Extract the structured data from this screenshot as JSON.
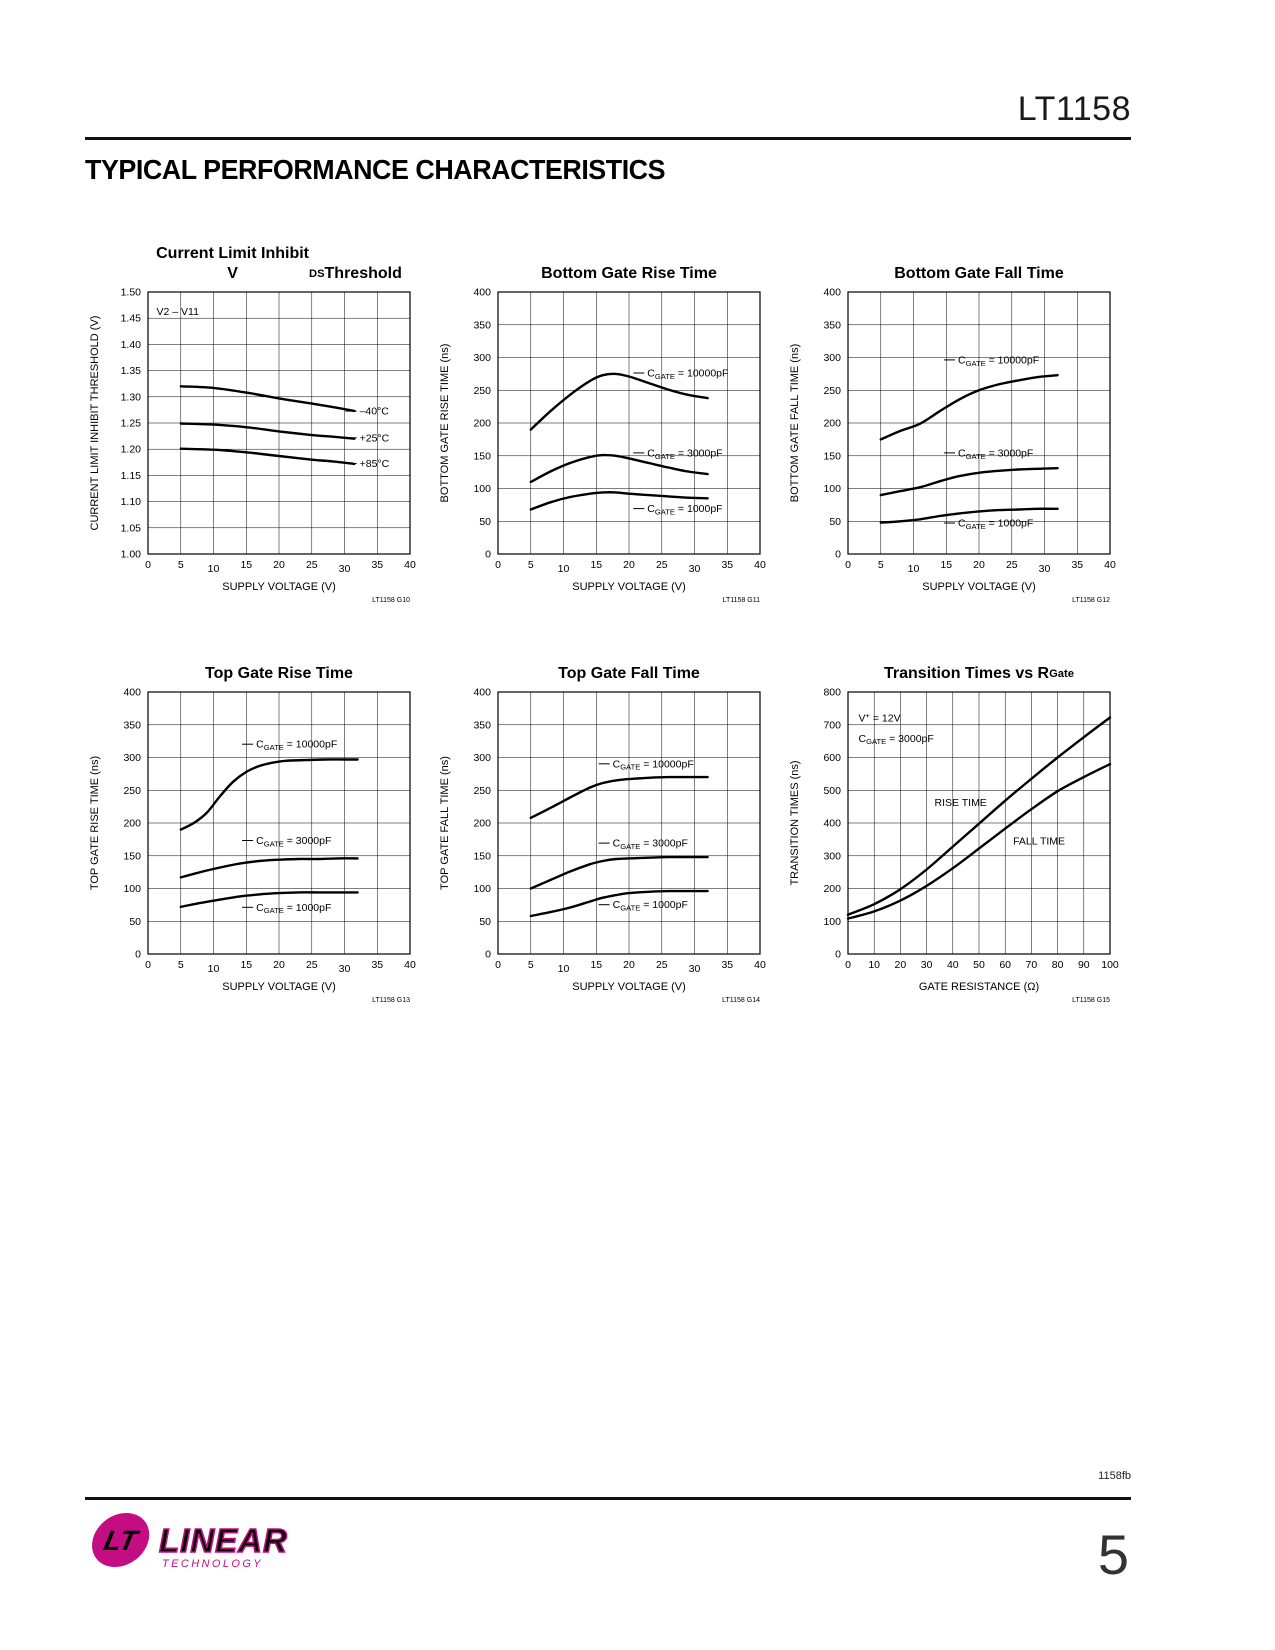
{
  "page": {
    "part_number": "LT1158",
    "section_title": "TYPICAL PERFORMANCE CHARACTERISTICS",
    "footer_code": "1158fb",
    "page_number": "5",
    "brand": {
      "mark": "LT",
      "name": "LINEAR",
      "sub": "TECHNOLOGY",
      "color": "#c40d83"
    }
  },
  "chart_data": [
    {
      "type": "line",
      "title_lines": [
        "Current Limit Inhibit",
        "V~DS~ Threshold"
      ],
      "xlabel": "SUPPLY VOLTAGE (V)",
      "ylabel": "CURRENT LIMIT INHIBIT THRESHOLD (V)",
      "xlim": [
        0,
        40
      ],
      "ylim": [
        1.0,
        1.5
      ],
      "xticks": [
        "0",
        "5",
        "10",
        "15",
        "20",
        "25",
        "30",
        "35",
        "40"
      ],
      "yticks": [
        "1.00",
        "1.05",
        "1.10",
        "1.15",
        "1.20",
        "1.25",
        "1.30",
        "1.35",
        "1.40",
        "1.45",
        "1.50"
      ],
      "xtick_dy": [
        0,
        0,
        4,
        0,
        0,
        0,
        4,
        0,
        0
      ],
      "grid": true,
      "ref": "LT1158 G10",
      "annotations": [
        {
          "text": "V2 – V11",
          "x": 1.3,
          "y": 1.456
        }
      ],
      "series": [
        {
          "label": "–40°C",
          "label_x": 32.3,
          "label_y": 1.266,
          "points": [
            [
              5,
              1.32
            ],
            [
              10,
              1.317
            ],
            [
              15,
              1.308
            ],
            [
              20,
              1.297
            ],
            [
              25,
              1.287
            ],
            [
              28,
              1.281
            ],
            [
              31.5,
              1.273
            ]
          ]
        },
        {
          "label": "+25°C",
          "label_x": 32.3,
          "label_y": 1.215,
          "points": [
            [
              5,
              1.249
            ],
            [
              10,
              1.247
            ],
            [
              15,
              1.242
            ],
            [
              20,
              1.234
            ],
            [
              25,
              1.227
            ],
            [
              28,
              1.224
            ],
            [
              31.5,
              1.22
            ]
          ]
        },
        {
          "label": "+85°C",
          "label_x": 32.3,
          "label_y": 1.166,
          "points": [
            [
              5,
              1.201
            ],
            [
              10,
              1.199
            ],
            [
              15,
              1.194
            ],
            [
              20,
              1.187
            ],
            [
              25,
              1.18
            ],
            [
              28,
              1.177
            ],
            [
              31.5,
              1.172
            ]
          ]
        }
      ]
    },
    {
      "type": "line",
      "title_lines": [
        "Bottom Gate Rise Time"
      ],
      "xlabel": "SUPPLY VOLTAGE (V)",
      "ylabel": "BOTTOM GATE RISE TIME (ns)",
      "xlim": [
        0,
        40
      ],
      "ylim": [
        0,
        400
      ],
      "xticks": [
        "0",
        "5",
        "10",
        "15",
        "20",
        "25",
        "30",
        "35",
        "40"
      ],
      "yticks": [
        "0",
        "50",
        "100",
        "150",
        "200",
        "250",
        "300",
        "350",
        "400"
      ],
      "xtick_dy": [
        0,
        0,
        4,
        0,
        0,
        0,
        4,
        0,
        0
      ],
      "grid": true,
      "ref": "LT1158 G11",
      "annotations": [],
      "series": [
        {
          "label": "C~GATE~ = 10000pF",
          "label_x": 22.8,
          "label_y": 271,
          "points": [
            [
              5,
              190
            ],
            [
              8,
              218
            ],
            [
              11,
              243
            ],
            [
              14,
              264
            ],
            [
              16,
              273
            ],
            [
              18,
              275
            ],
            [
              20,
              271
            ],
            [
              23,
              261
            ],
            [
              26,
              251
            ],
            [
              29,
              243
            ],
            [
              32,
              238
            ]
          ]
        },
        {
          "label": "C~GATE~ = 3000pF",
          "label_x": 22.8,
          "label_y": 149,
          "points": [
            [
              5,
              110
            ],
            [
              8,
              126
            ],
            [
              11,
              139
            ],
            [
              14,
              148
            ],
            [
              16,
              151
            ],
            [
              18,
              150
            ],
            [
              20,
              146
            ],
            [
              23,
              139
            ],
            [
              26,
              132
            ],
            [
              29,
              126
            ],
            [
              32,
              122
            ]
          ]
        },
        {
          "label": "C~GATE~ = 1000pF",
          "label_x": 22.8,
          "label_y": 64,
          "points": [
            [
              5,
              68
            ],
            [
              8,
              79
            ],
            [
              11,
              87
            ],
            [
              14,
              92
            ],
            [
              16,
              94
            ],
            [
              18,
              94
            ],
            [
              20,
              92
            ],
            [
              23,
              90
            ],
            [
              26,
              88
            ],
            [
              29,
              86
            ],
            [
              32,
              85
            ]
          ]
        }
      ]
    },
    {
      "type": "line",
      "title_lines": [
        "Bottom Gate Fall Time"
      ],
      "xlabel": "SUPPLY VOLTAGE (V)",
      "ylabel": "BOTTOM GATE FALL TIME (ns)",
      "xlim": [
        0,
        40
      ],
      "ylim": [
        0,
        400
      ],
      "xticks": [
        "0",
        "5",
        "10",
        "15",
        "20",
        "25",
        "30",
        "35",
        "40"
      ],
      "yticks": [
        "0",
        "50",
        "100",
        "150",
        "200",
        "250",
        "300",
        "350",
        "400"
      ],
      "xtick_dy": [
        0,
        0,
        4,
        0,
        0,
        0,
        4,
        0,
        0
      ],
      "grid": true,
      "ref": "LT1158 G12",
      "annotations": [],
      "series": [
        {
          "label": "C~GATE~ = 10000pF",
          "label_x": 16.8,
          "label_y": 291,
          "points": [
            [
              5,
              175
            ],
            [
              8,
              188
            ],
            [
              11,
              199
            ],
            [
              14,
              218
            ],
            [
              17,
              236
            ],
            [
              20,
              250
            ],
            [
              23,
              259
            ],
            [
              26,
              265
            ],
            [
              29,
              270
            ],
            [
              32,
              273
            ]
          ]
        },
        {
          "label": "C~GATE~ = 3000pF",
          "label_x": 16.8,
          "label_y": 149,
          "points": [
            [
              5,
              90
            ],
            [
              8,
              96
            ],
            [
              11,
              102
            ],
            [
              14,
              111
            ],
            [
              17,
              119
            ],
            [
              20,
              124
            ],
            [
              23,
              127
            ],
            [
              26,
              129
            ],
            [
              29,
              130
            ],
            [
              32,
              131
            ]
          ]
        },
        {
          "label": "C~GATE~ = 1000pF",
          "label_x": 16.8,
          "label_y": 42,
          "points": [
            [
              5,
              48
            ],
            [
              8,
              50
            ],
            [
              11,
              53
            ],
            [
              14,
              58
            ],
            [
              17,
              62
            ],
            [
              20,
              65
            ],
            [
              23,
              67
            ],
            [
              26,
              68
            ],
            [
              29,
              69
            ],
            [
              32,
              69
            ]
          ]
        }
      ]
    },
    {
      "type": "line",
      "title_lines": [
        "Top Gate Rise Time"
      ],
      "xlabel": "SUPPLY VOLTAGE (V)",
      "ylabel": "TOP GATE RISE TIME (ns)",
      "xlim": [
        0,
        40
      ],
      "ylim": [
        0,
        400
      ],
      "xticks": [
        "0",
        "5",
        "10",
        "15",
        "20",
        "25",
        "30",
        "35",
        "40"
      ],
      "yticks": [
        "0",
        "50",
        "100",
        "150",
        "200",
        "250",
        "300",
        "350",
        "400"
      ],
      "xtick_dy": [
        0,
        0,
        4,
        0,
        0,
        0,
        4,
        0,
        0
      ],
      "grid": true,
      "ref": "LT1158 G13",
      "annotations": [],
      "series": [
        {
          "label": "C~GATE~ = 10000pF",
          "label_x": 16.5,
          "label_y": 315,
          "points": [
            [
              5,
              190
            ],
            [
              7,
              200
            ],
            [
              9,
              216
            ],
            [
              11,
              241
            ],
            [
              13,
              263
            ],
            [
              15,
              278
            ],
            [
              17,
              287
            ],
            [
              19,
              292
            ],
            [
              21,
              295
            ],
            [
              24,
              296
            ],
            [
              27,
              297
            ],
            [
              30,
              297
            ],
            [
              32,
              297
            ]
          ]
        },
        {
          "label": "C~GATE~ = 3000pF",
          "label_x": 16.5,
          "label_y": 168,
          "points": [
            [
              5,
              117
            ],
            [
              8,
              125
            ],
            [
              11,
              132
            ],
            [
              14,
              138
            ],
            [
              17,
              142
            ],
            [
              20,
              144
            ],
            [
              23,
              145
            ],
            [
              26,
              145
            ],
            [
              29,
              146
            ],
            [
              32,
              146
            ]
          ]
        },
        {
          "label": "C~GATE~ = 1000pF",
          "label_x": 16.5,
          "label_y": 66,
          "points": [
            [
              5,
              72
            ],
            [
              8,
              78
            ],
            [
              11,
              83
            ],
            [
              14,
              88
            ],
            [
              17,
              91
            ],
            [
              20,
              93
            ],
            [
              23,
              94
            ],
            [
              26,
              94
            ],
            [
              29,
              94
            ],
            [
              32,
              94
            ]
          ]
        }
      ]
    },
    {
      "type": "line",
      "title_lines": [
        "Top Gate Fall Time"
      ],
      "xlabel": "SUPPLY VOLTAGE (V)",
      "ylabel": "TOP GATE FALL TIME (ns)",
      "xlim": [
        0,
        40
      ],
      "ylim": [
        0,
        400
      ],
      "xticks": [
        "0",
        "5",
        "10",
        "15",
        "20",
        "25",
        "30",
        "35",
        "40"
      ],
      "yticks": [
        "0",
        "50",
        "100",
        "150",
        "200",
        "250",
        "300",
        "350",
        "400"
      ],
      "xtick_dy": [
        0,
        0,
        4,
        0,
        0,
        0,
        4,
        0,
        0
      ],
      "grid": true,
      "ref": "LT1158 G14",
      "annotations": [],
      "series": [
        {
          "label": "C~GATE~ = 10000pF",
          "label_x": 17.5,
          "label_y": 285,
          "points": [
            [
              5,
              208
            ],
            [
              8,
              223
            ],
            [
              11,
              239
            ],
            [
              14,
              254
            ],
            [
              16,
              261
            ],
            [
              18,
              265
            ],
            [
              20,
              267
            ],
            [
              23,
              269
            ],
            [
              26,
              270
            ],
            [
              29,
              270
            ],
            [
              32,
              270
            ]
          ]
        },
        {
          "label": "C~GATE~ = 3000pF",
          "label_x": 17.5,
          "label_y": 164,
          "points": [
            [
              5,
              100
            ],
            [
              8,
              113
            ],
            [
              11,
              126
            ],
            [
              14,
              137
            ],
            [
              16,
              142
            ],
            [
              18,
              145
            ],
            [
              20,
              146
            ],
            [
              23,
              147
            ],
            [
              26,
              148
            ],
            [
              29,
              148
            ],
            [
              32,
              148
            ]
          ]
        },
        {
          "label": "C~GATE~ = 1000pF",
          "label_x": 17.5,
          "label_y": 70,
          "points": [
            [
              5,
              58
            ],
            [
              8,
              64
            ],
            [
              11,
              71
            ],
            [
              14,
              80
            ],
            [
              16,
              86
            ],
            [
              18,
              90
            ],
            [
              20,
              93
            ],
            [
              23,
              95
            ],
            [
              26,
              96
            ],
            [
              29,
              96
            ],
            [
              32,
              96
            ]
          ]
        }
      ]
    },
    {
      "type": "line",
      "title_lines": [
        "Transition Times vs R~Gate~"
      ],
      "xlabel": "GATE RESISTANCE (Ω)",
      "ylabel": "TRANSITION TIMES (ns)",
      "xlim": [
        0,
        100
      ],
      "ylim": [
        0,
        800
      ],
      "xticks": [
        "0",
        "10",
        "20",
        "30",
        "40",
        "50",
        "60",
        "70",
        "80",
        "90",
        "100"
      ],
      "yticks": [
        "0",
        "100",
        "200",
        "300",
        "400",
        "500",
        "600",
        "700",
        "800"
      ],
      "xtick_dy": [
        0,
        0,
        0,
        0,
        0,
        0,
        0,
        0,
        0,
        0,
        0
      ],
      "grid": true,
      "ref": "LT1158 G15",
      "annotations": [
        {
          "text": "V^+^ = 12V",
          "x": 4,
          "y": 710
        },
        {
          "text": "C~GATE~ = 3000pF",
          "x": 4,
          "y": 648
        }
      ],
      "series": [
        {
          "label": "RISE TIME",
          "label_x": 33,
          "label_y": 452,
          "leader": false,
          "points": [
            [
              0,
              120
            ],
            [
              10,
              152
            ],
            [
              20,
              198
            ],
            [
              30,
              258
            ],
            [
              40,
              328
            ],
            [
              50,
              398
            ],
            [
              60,
              468
            ],
            [
              70,
              535
            ],
            [
              80,
              600
            ],
            [
              90,
              662
            ],
            [
              100,
              722
            ]
          ]
        },
        {
          "label": "FALL TIME",
          "label_x": 63,
          "label_y": 335,
          "leader": false,
          "points": [
            [
              0,
              108
            ],
            [
              10,
              130
            ],
            [
              20,
              163
            ],
            [
              30,
              208
            ],
            [
              40,
              262
            ],
            [
              50,
              322
            ],
            [
              60,
              383
            ],
            [
              70,
              442
            ],
            [
              80,
              497
            ],
            [
              90,
              540
            ],
            [
              100,
              580
            ]
          ]
        }
      ]
    }
  ]
}
